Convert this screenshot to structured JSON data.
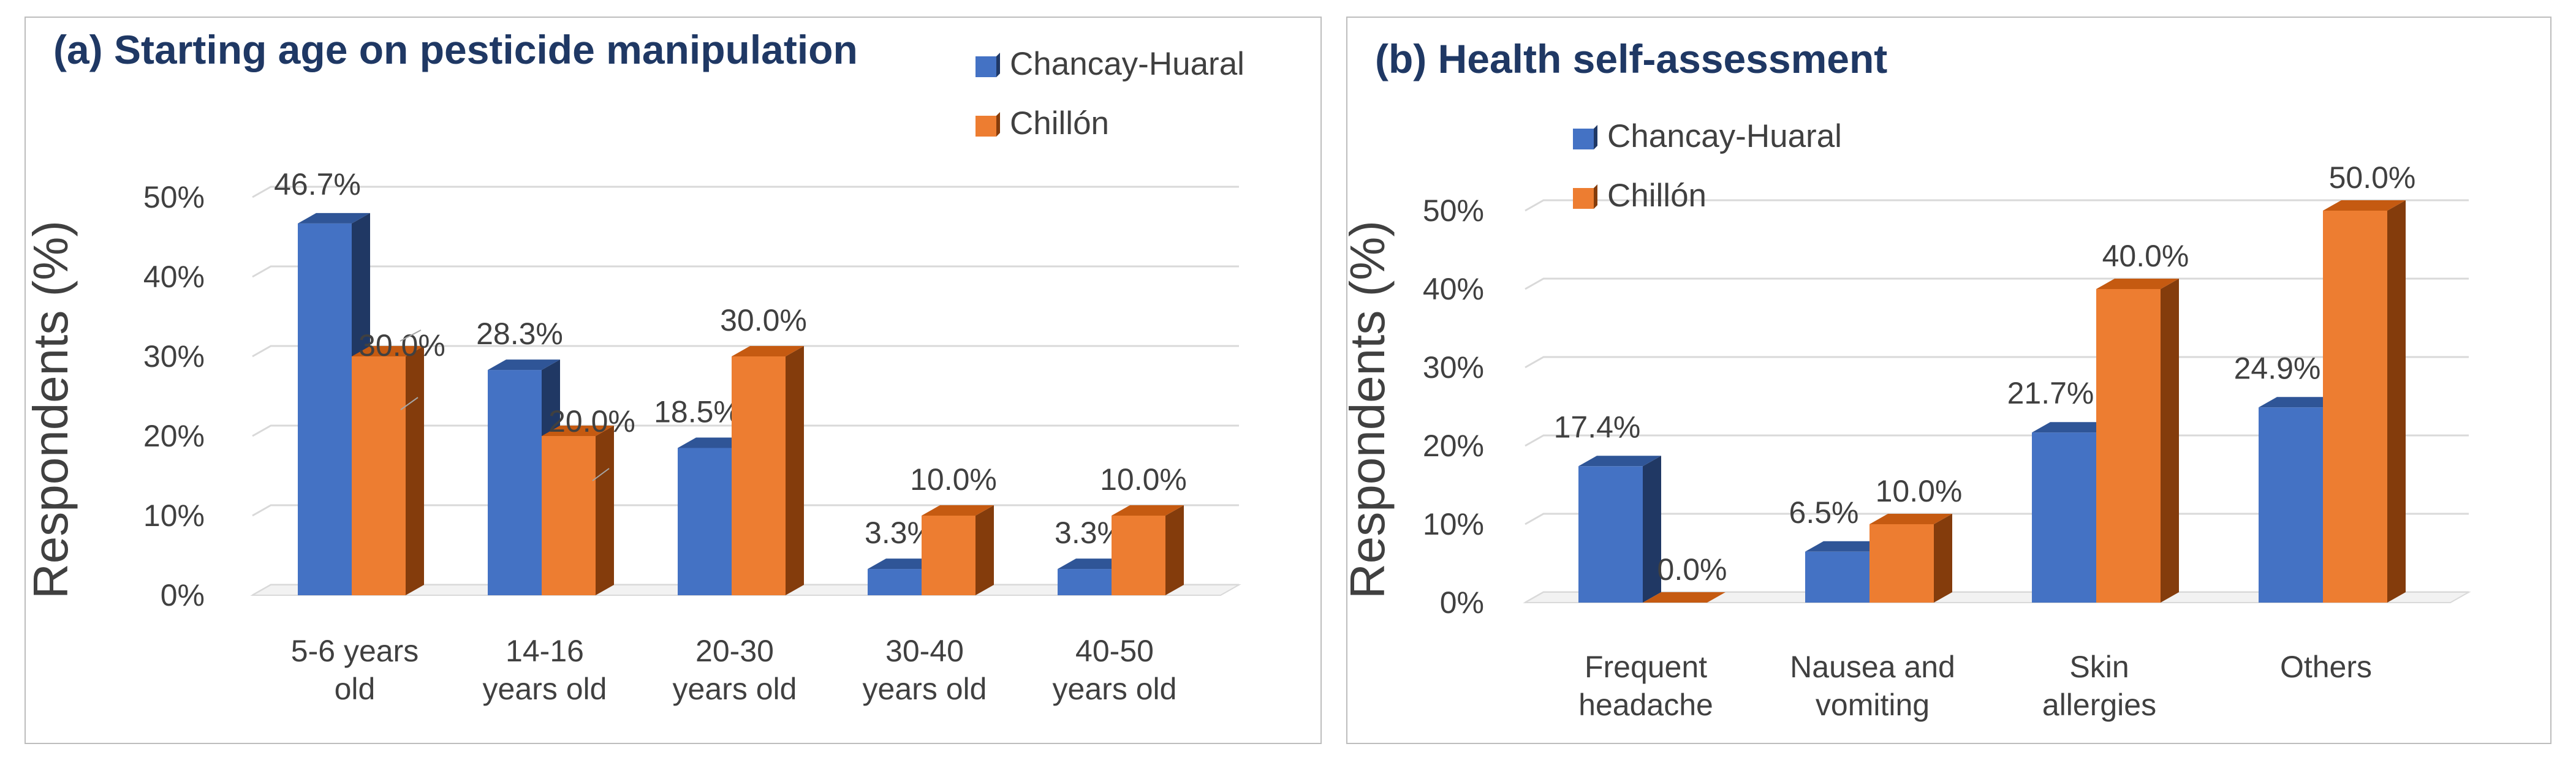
{
  "chart_data": [
    {
      "type": "bar",
      "title": "(a) Starting age on pesticide manipulation",
      "ylabel": "Respondents  (%)",
      "xlabel": "",
      "categories": [
        [
          "5-6 years",
          "old"
        ],
        [
          "14-16",
          "years old"
        ],
        [
          "20-30",
          "years old"
        ],
        [
          "30-40",
          "years old"
        ],
        [
          "40-50",
          "years old"
        ]
      ],
      "series": [
        {
          "name": "Chancay-Huaral",
          "values": [
            46.7,
            28.3,
            18.5,
            3.3,
            3.3
          ],
          "labels": [
            "46.7%",
            "28.3%",
            "18.5%",
            "3.3%",
            "3.3%"
          ]
        },
        {
          "name": "Chillón",
          "values": [
            30.0,
            20.0,
            30.0,
            10.0,
            10.0
          ],
          "labels": [
            "30.0%",
            "20.0%",
            "30.0%",
            "10.0%",
            "10.0%"
          ]
        }
      ],
      "ylim": [
        0,
        50
      ],
      "yticks": [
        "0%",
        "10%",
        "20%",
        "30%",
        "40%",
        "50%"
      ],
      "grid": true,
      "legend": "top-right",
      "style": "3d-column"
    },
    {
      "type": "bar",
      "title": "(b) Health self-assessment",
      "ylabel": "Respondents  (%)",
      "xlabel": "",
      "categories": [
        [
          "Frequent",
          "headache"
        ],
        [
          "Nausea and",
          "vomiting"
        ],
        [
          "Skin",
          "allergies"
        ],
        [
          "Others"
        ]
      ],
      "series": [
        {
          "name": "Chancay-Huaral",
          "values": [
            17.4,
            6.5,
            21.7,
            24.9
          ],
          "labels": [
            "17.4%",
            "6.5%",
            "21.7%",
            "24.9%"
          ]
        },
        {
          "name": "Chillón",
          "values": [
            0.0,
            10.0,
            40.0,
            50.0
          ],
          "labels": [
            "0.0%",
            "10.0%",
            "40.0%",
            "50.0%"
          ]
        }
      ],
      "ylim": [
        0,
        50
      ],
      "yticks": [
        "0%",
        "10%",
        "20%",
        "30%",
        "40%",
        "50%"
      ],
      "grid": true,
      "legend": "top-left",
      "style": "3d-column"
    }
  ],
  "colors": {
    "series_front": [
      "#4472c4",
      "#ed7d31"
    ],
    "series_top": [
      "#2f5597",
      "#c55a11"
    ],
    "series_side": [
      "#203864",
      "#843c0c"
    ],
    "title": "#1f3864",
    "text": "#404040",
    "grid": "#d9d9d9"
  }
}
